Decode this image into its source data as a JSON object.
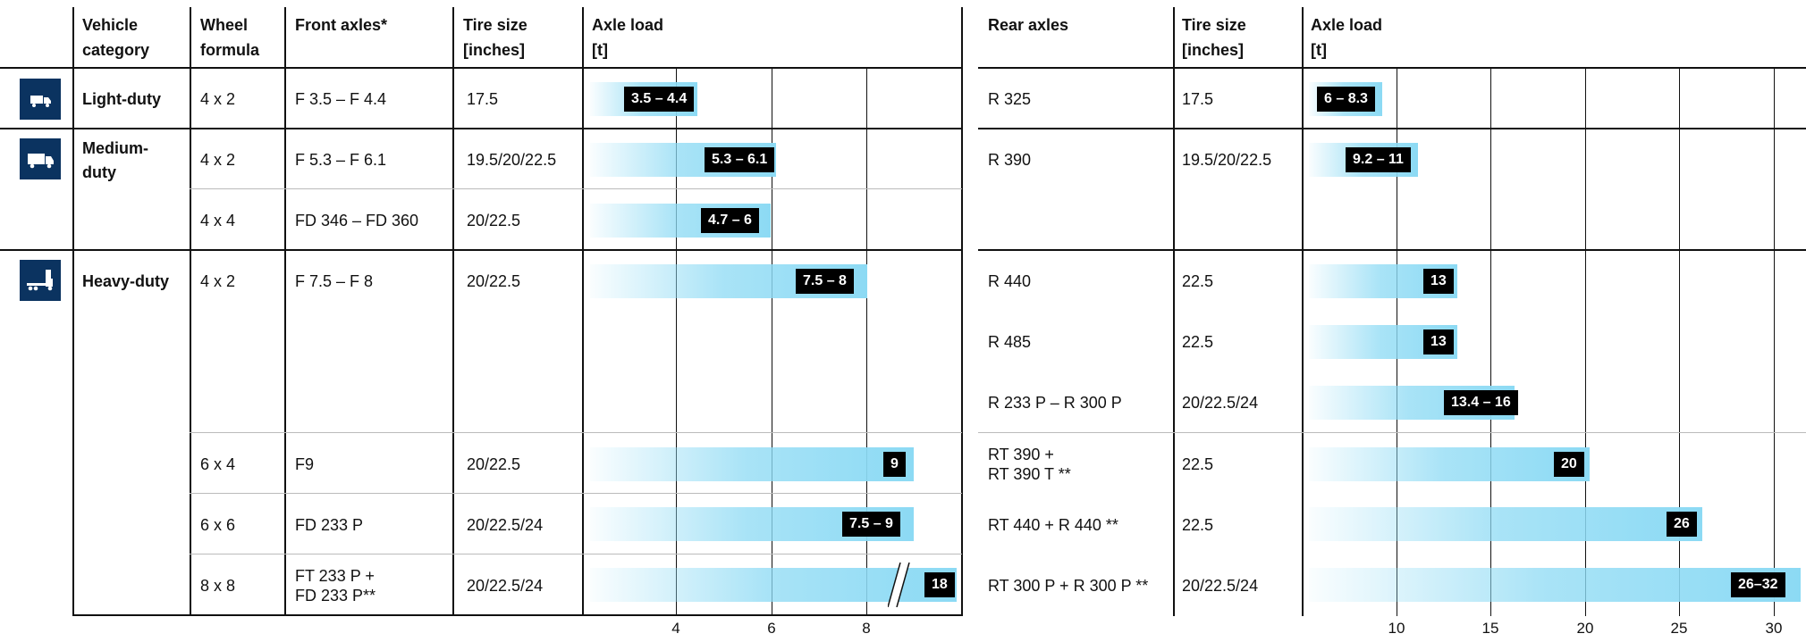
{
  "headers": {
    "vehicle_category": "Vehicle\ncategory",
    "wheel_formula": "Wheel\nformula",
    "front_axles": "Front axles*",
    "front_tire_size": "Tire size\n[inches]",
    "front_axle_load": "Axle load\n[t]",
    "rear_axles": "Rear axles",
    "rear_tire_size": "Tire size\n[inches]",
    "rear_axle_load": "Axle load\n[t]"
  },
  "categories": [
    {
      "name": "Light-duty",
      "icon": "light-truck-icon"
    },
    {
      "name": "Medium-\nduty",
      "icon": "medium-truck-icon"
    },
    {
      "name": "Heavy-duty",
      "icon": "heavy-truck-icon"
    }
  ],
  "front_rows": [
    {
      "wheel_formula": "4 x 2",
      "axles": "F 3.5 – F 4.4",
      "tire_size": "17.5",
      "load_label": "3.5 – 4.4",
      "load_min": 3.5,
      "load_max": 4.4
    },
    {
      "wheel_formula": "4 x 2",
      "axles": "F 5.3 – F 6.1",
      "tire_size": "19.5/20/22.5",
      "load_label": "5.3 – 6.1",
      "load_min": 5.3,
      "load_max": 6.1
    },
    {
      "wheel_formula": "4 x 4",
      "axles": "FD 346 – FD 360",
      "tire_size": "20/22.5",
      "load_label": "4.7 – 6",
      "load_min": 4.7,
      "load_max": 6
    },
    {
      "wheel_formula": "4 x 2",
      "axles": "F 7.5 – F 8",
      "tire_size": "20/22.5",
      "load_label": "7.5 – 8",
      "load_min": 7.5,
      "load_max": 8
    },
    {
      "wheel_formula": "6 x 4",
      "axles": "F9",
      "tire_size": "20/22.5",
      "load_label": "9",
      "load_min": 9,
      "load_max": 9
    },
    {
      "wheel_formula": "6 x 6",
      "axles": "FD 233 P",
      "tire_size": "20/22.5/24",
      "load_label": "7.5 – 9",
      "load_min": 7.5,
      "load_max": 9
    },
    {
      "wheel_formula": "8 x 8",
      "axles": "FT 233 P +\nFD 233 P**",
      "tire_size": "20/22.5/24",
      "load_label": "18",
      "load_min": 18,
      "load_max": 18
    }
  ],
  "rear_rows": [
    {
      "axles": "R 325",
      "tire_size": "17.5",
      "load_label": "6 – 8.3",
      "load_min": 6,
      "load_max": 8.3
    },
    {
      "axles": "R 390",
      "tire_size": "19.5/20/22.5",
      "load_label": "9.2 – 11",
      "load_min": 9.2,
      "load_max": 11
    },
    {
      "axles": "R 440",
      "tire_size": "22.5",
      "load_label": "13",
      "load_min": 13,
      "load_max": 13
    },
    {
      "axles": "R 485",
      "tire_size": "22.5",
      "load_label": "13",
      "load_min": 13,
      "load_max": 13
    },
    {
      "axles": "R 233 P – R 300 P",
      "tire_size": "20/22.5/24",
      "load_label": "13.4 – 16",
      "load_min": 13.4,
      "load_max": 16
    },
    {
      "axles": "RT 390 +\nRT 390 T **",
      "tire_size": "22.5",
      "load_label": "20",
      "load_min": 20,
      "load_max": 20
    },
    {
      "axles": "RT 440 + R 440 **",
      "tire_size": "22.5",
      "load_label": "26",
      "load_min": 26,
      "load_max": 26
    },
    {
      "axles": "RT 300 P + R 300 P **",
      "tire_size": "20/22.5/24",
      "load_label": "26–32",
      "load_min": 26,
      "load_max": 32
    }
  ],
  "front_ticks": [
    "4",
    "6",
    "8"
  ],
  "rear_ticks": [
    "10",
    "15",
    "20",
    "25",
    "30"
  ],
  "colors": {
    "bar": "#8cdaf4",
    "label_bg": "#000000",
    "icon_bg": "#0b3360"
  }
}
